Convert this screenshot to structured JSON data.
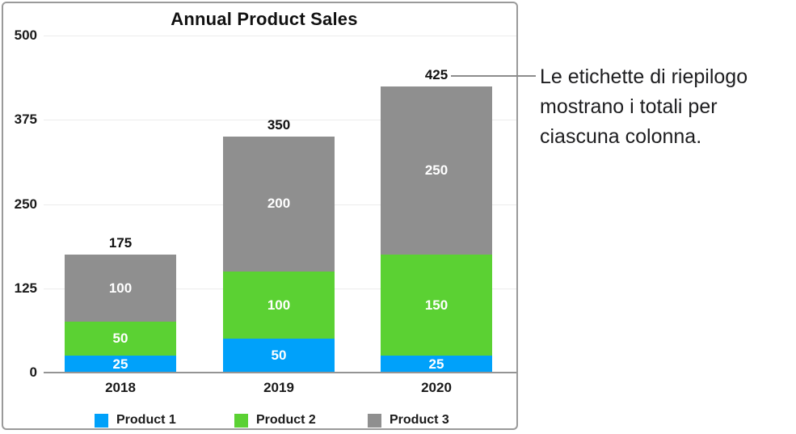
{
  "chart_data": {
    "type": "bar",
    "stacked": true,
    "title": "Annual Product Sales",
    "categories": [
      "2018",
      "2019",
      "2020"
    ],
    "series": [
      {
        "name": "Product 1",
        "color": "#00A1FA",
        "values": [
          25,
          50,
          25
        ]
      },
      {
        "name": "Product 2",
        "color": "#5BD133",
        "values": [
          50,
          100,
          150
        ]
      },
      {
        "name": "Product 3",
        "color": "#8F8F8F",
        "values": [
          100,
          200,
          250
        ]
      }
    ],
    "totals": [
      175,
      350,
      425
    ],
    "yticks": [
      0,
      125,
      250,
      375,
      500
    ],
    "ylim": [
      0,
      500
    ],
    "grid": true,
    "legend_position": "bottom",
    "grid_color": "#ececec",
    "axis_color": "#949494",
    "segment_label_color": "#ffffff",
    "total_label_color": "#111111"
  },
  "figure": {
    "callout": {
      "lines": [
        "Le etichette di riepilogo",
        "mostrano i totali per",
        "ciascuna colonna."
      ],
      "leader_line_color": "#8c8c8c"
    }
  }
}
